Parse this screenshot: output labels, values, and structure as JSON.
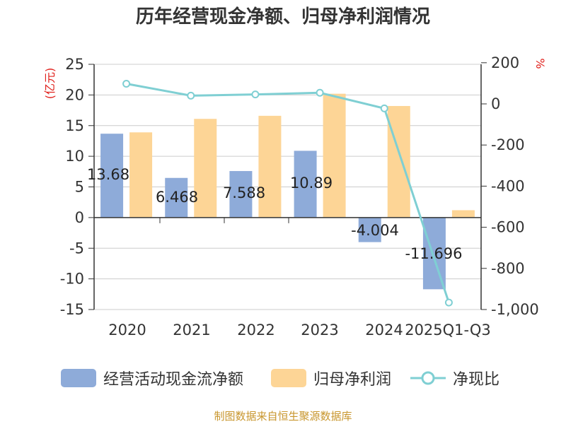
{
  "title": "历年经营现金净额、归母净利润情况",
  "source_note": "制图数据来自恒生聚源数据库",
  "colors": {
    "cashflow": "#8eabd9",
    "profit": "#fdd596",
    "ratio": "#7fcfd3",
    "unit_red": "#e0201b",
    "source": "#c8962d",
    "grid": "#cccccc",
    "axis": "#333333"
  },
  "chart_data": {
    "type": "bar",
    "title": "历年经营现金净额、归母净利润情况",
    "categories": [
      "2020",
      "2021",
      "2022",
      "2023",
      "2024",
      "2025Q1-Q3"
    ],
    "left_axis": {
      "unit": "(亿元)",
      "ylim": [
        -15,
        25
      ],
      "ticks": [
        25,
        20,
        15,
        10,
        5,
        0,
        -5,
        -10,
        -15
      ]
    },
    "right_axis": {
      "unit": "%",
      "ylim": [
        -1000,
        200
      ],
      "ticks": [
        "200",
        "0",
        "-200",
        "-400",
        "-600",
        "-800",
        "-1,000"
      ]
    },
    "series": [
      {
        "name": "经营活动现金流净额",
        "type": "bar",
        "axis": "left",
        "values": [
          13.68,
          6.468,
          7.588,
          10.89,
          -4.004,
          -11.696
        ],
        "labels": [
          "13.68",
          "6.468",
          "7.588",
          "10.89",
          "-4.004",
          "-11.696"
        ]
      },
      {
        "name": "归母净利润",
        "type": "bar",
        "axis": "left",
        "values": [
          13.9,
          16.1,
          16.6,
          20.2,
          18.2,
          1.2
        ]
      },
      {
        "name": "净现比",
        "type": "line",
        "axis": "right",
        "values": [
          98,
          40,
          46,
          54,
          -22,
          -966
        ]
      }
    ],
    "legend": "bottom",
    "grid": true
  }
}
